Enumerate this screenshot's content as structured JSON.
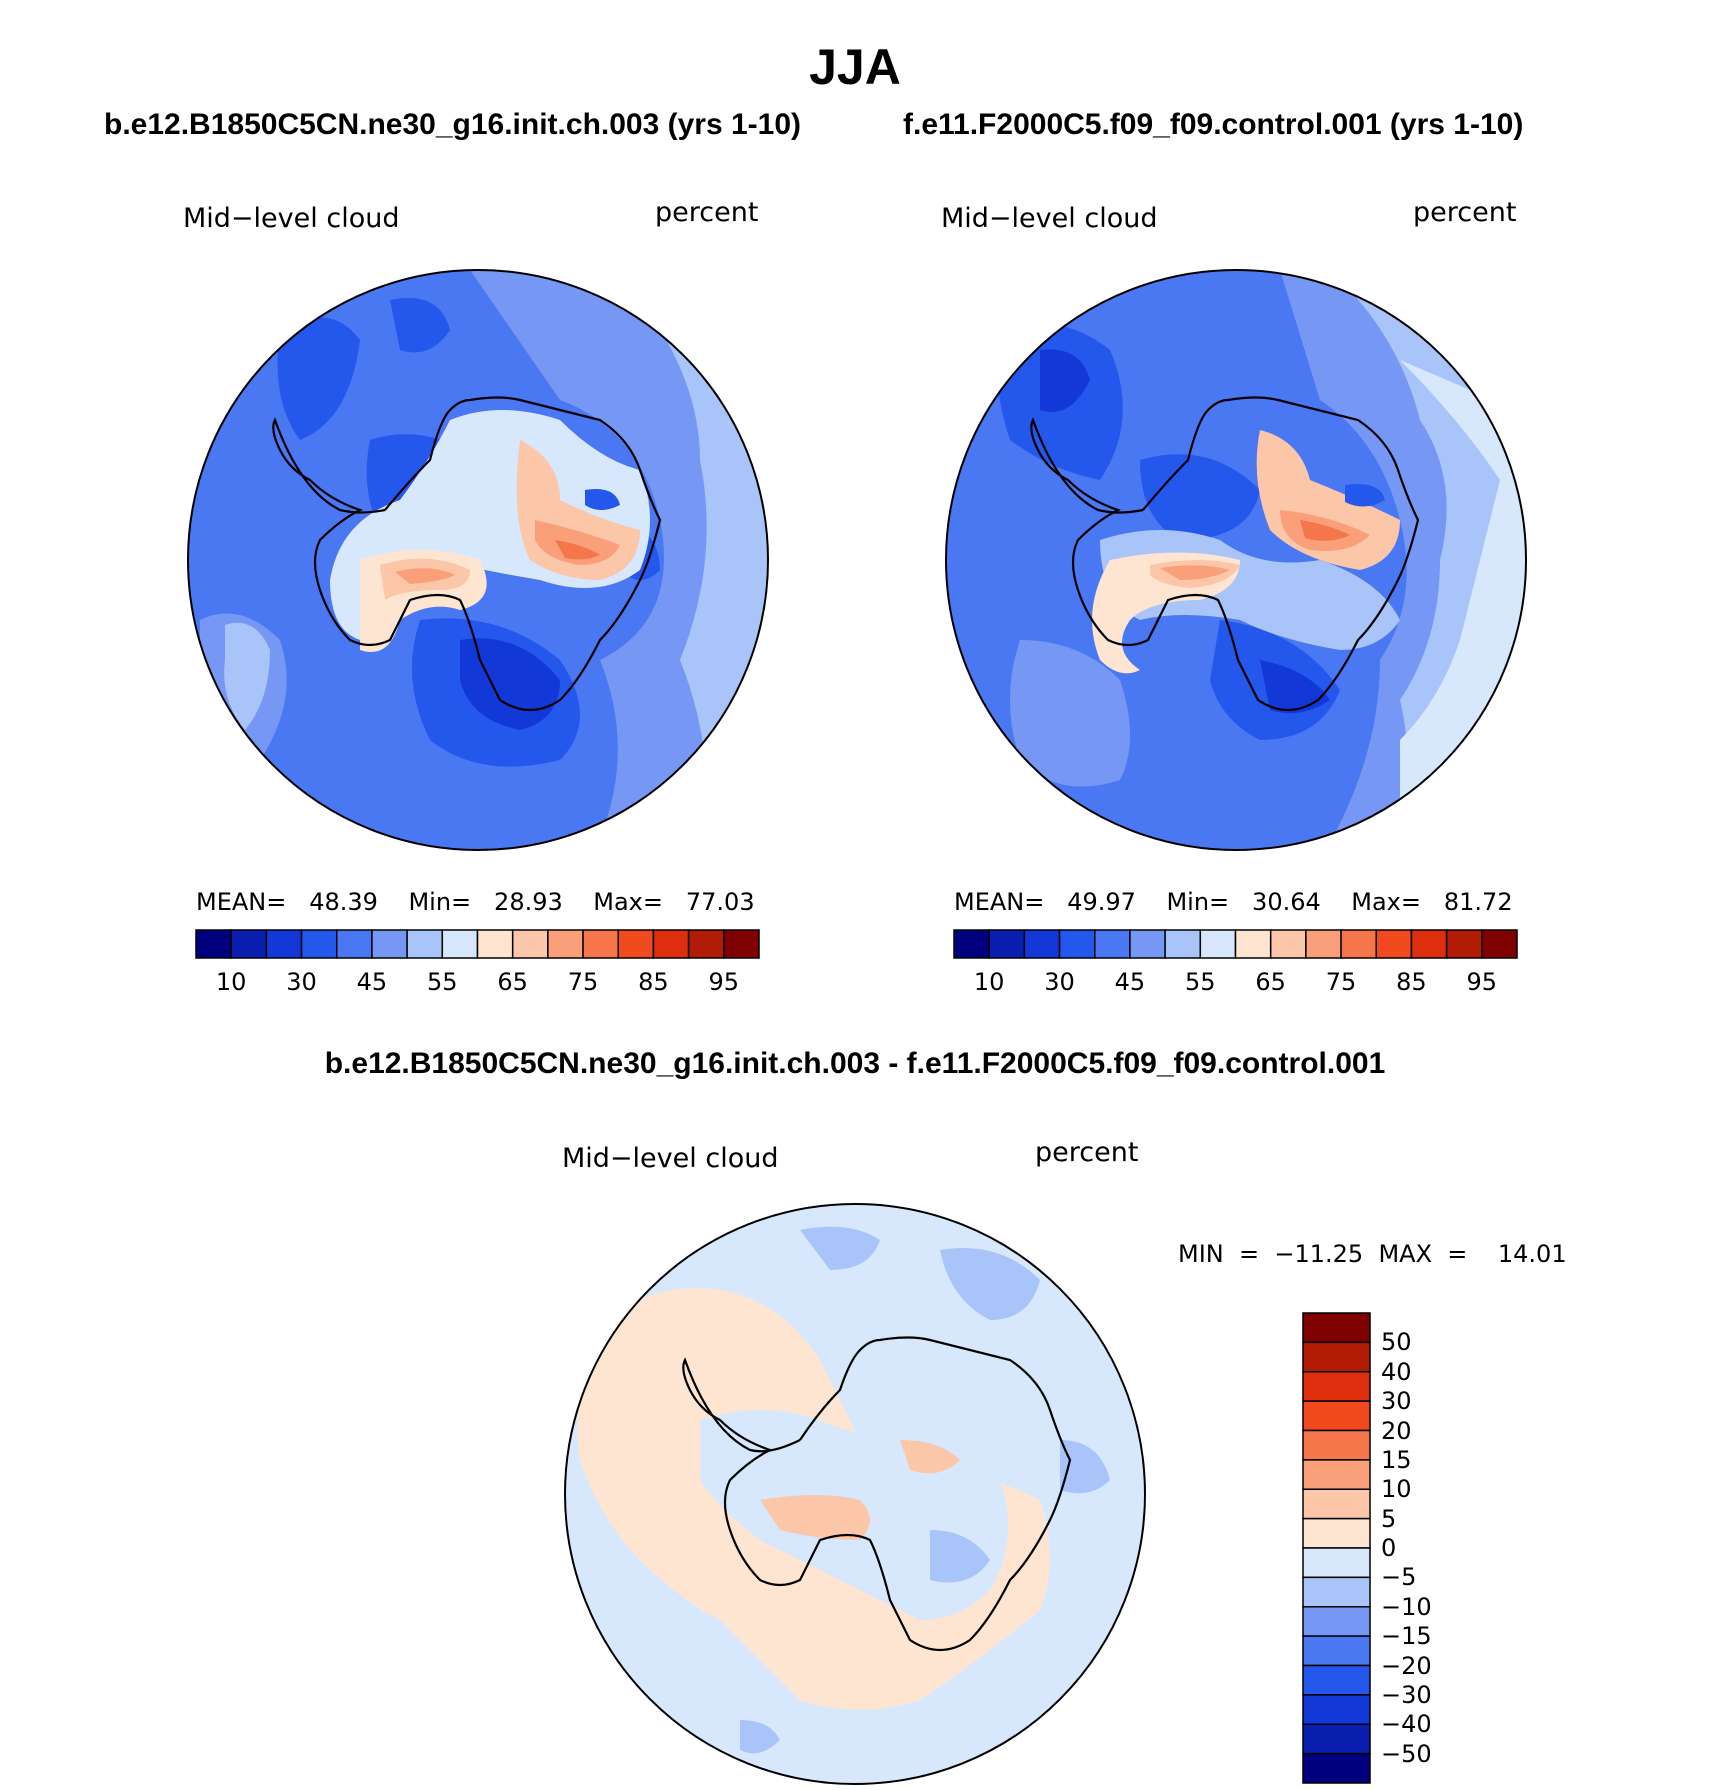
{
  "title": "JJA",
  "panels": [
    {
      "case": "b.e12.B1850C5CN.ne30_g16.init.ch.003 (yrs 1-10)",
      "variable": "Mid−level  cloud",
      "units": "percent",
      "stats": "MEAN=   48.39    Min=   28.93    Max=   77.03"
    },
    {
      "case": "f.e11.F2000C5.f09_f09.control.001 (yrs 1-10)",
      "variable": "Mid−level  cloud",
      "units": "percent",
      "stats": "MEAN=   49.97    Min=   30.64    Max=   81.72"
    }
  ],
  "difference": {
    "title": "b.e12.B1850C5CN.ne30_g16.init.ch.003 - f.e11.F2000C5.f09_f09.control.001",
    "variable": "Mid−level  cloud",
    "units": "percent",
    "stats": "MIN  =  −11.25  MAX  =    14.01"
  },
  "colorbar_main": {
    "colors": [
      "#00007f",
      "#0a1eaf",
      "#1238d8",
      "#2457ec",
      "#4a78f2",
      "#7698f4",
      "#a9c4f9",
      "#d8e8fc",
      "#fde5d1",
      "#fcc6a8",
      "#f9a07a",
      "#f5764a",
      "#f24a1f",
      "#dd2f0e",
      "#b21c06",
      "#7f0000"
    ],
    "ticks": [
      "10",
      "30",
      "45",
      "55",
      "65",
      "75",
      "85",
      "95"
    ]
  },
  "colorbar_diff": {
    "colors": [
      "#7f0000",
      "#b21c06",
      "#dd2f0e",
      "#f24a1f",
      "#f5764a",
      "#f9a07a",
      "#fcc6a8",
      "#fde5d1",
      "#d8e8fc",
      "#a9c4f9",
      "#7698f4",
      "#4a78f2",
      "#2457ec",
      "#1238d8",
      "#0a1eaf",
      "#00007f"
    ],
    "ticks": [
      "50",
      "40",
      "30",
      "20",
      "15",
      "10",
      "5",
      "0",
      "−5",
      "−10",
      "−15",
      "−20",
      "−30",
      "−40",
      "−50"
    ]
  },
  "map_colors": {
    "dark": "#1238d8",
    "deep": "#2457ec",
    "mid": "#4a78f2",
    "light": "#7698f4",
    "pale": "#a9c4f9",
    "paler": "#d8e8fc",
    "warm1": "#fde5d1",
    "warm2": "#fcc6a8",
    "warm3": "#f9a07a",
    "warm4": "#f5764a"
  }
}
